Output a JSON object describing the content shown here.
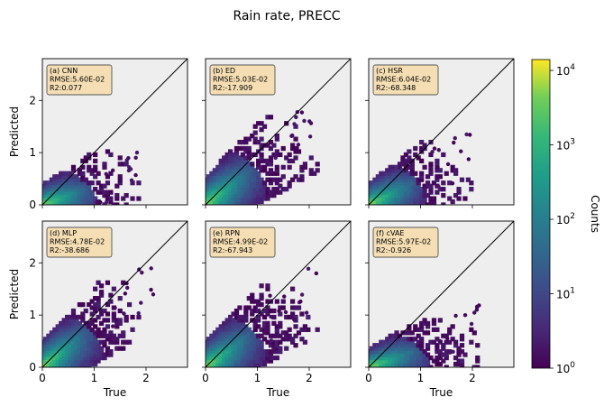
{
  "figure": {
    "title": "Rain rate, PRECC",
    "colorbar": {
      "label": "Counts",
      "scale": "log",
      "range": [
        1,
        14000
      ],
      "ticks": [
        {
          "v": 1,
          "b": "10",
          "e": "0"
        },
        {
          "v": 10,
          "b": "10",
          "e": "1"
        },
        {
          "v": 100,
          "b": "10",
          "e": "2"
        },
        {
          "v": 1000,
          "b": "10",
          "e": "3"
        },
        {
          "v": 10000,
          "b": "10",
          "e": "4"
        }
      ],
      "colormap": "viridis"
    },
    "colors": {
      "panel_bg": "#eeeeee",
      "label_box": "#f5deb3",
      "identity_line": "#000000"
    }
  },
  "chart_data": [
    {
      "type": "hexbin",
      "label": "(a) CNN",
      "rmse": "RMSE:5.60E-02",
      "r2": "R2:0.077",
      "xlabel": "",
      "ylabel": "Predicted",
      "xlim": [
        0,
        2.8
      ],
      "ylim": [
        0,
        2.8
      ],
      "xticks": [
        {
          "v": 0,
          "t": ""
        },
        {
          "v": 1,
          "t": ""
        },
        {
          "v": 2,
          "t": ""
        }
      ],
      "yticks": [
        {
          "v": 0,
          "t": "0"
        },
        {
          "v": 1,
          "t": "1"
        },
        {
          "v": 2,
          "t": "2"
        }
      ],
      "cloud": {
        "xmax": 1.9,
        "ymax": 1.3,
        "slope": 0.38,
        "spread": 0.28
      }
    },
    {
      "type": "hexbin",
      "label": "(b) ED",
      "rmse": "RMSE:5.03E-02",
      "r2": "R2:-17.909",
      "xlabel": "",
      "ylabel": "",
      "xlim": [
        0,
        2.8
      ],
      "ylim": [
        0,
        2.8
      ],
      "xticks": [
        {
          "v": 0,
          "t": ""
        },
        {
          "v": 1,
          "t": ""
        },
        {
          "v": 2,
          "t": ""
        }
      ],
      "yticks": [
        {
          "v": 0,
          "t": ""
        },
        {
          "v": 1,
          "t": ""
        },
        {
          "v": 2,
          "t": ""
        }
      ],
      "cloud": {
        "xmax": 2.2,
        "ymax": 2.05,
        "slope": 0.78,
        "spread": 0.38
      }
    },
    {
      "type": "hexbin",
      "label": "(c) HSR",
      "rmse": "RMSE:6.04E-02",
      "r2": "R2:-68.348",
      "xlabel": "",
      "ylabel": "",
      "xlim": [
        0,
        2.8
      ],
      "ylim": [
        0,
        2.8
      ],
      "xticks": [
        {
          "v": 0,
          "t": ""
        },
        {
          "v": 1,
          "t": ""
        },
        {
          "v": 2,
          "t": ""
        }
      ],
      "yticks": [
        {
          "v": 0,
          "t": ""
        },
        {
          "v": 1,
          "t": ""
        },
        {
          "v": 2,
          "t": ""
        }
      ],
      "cloud": {
        "xmax": 2.0,
        "ymax": 1.55,
        "slope": 0.52,
        "spread": 0.3
      }
    },
    {
      "type": "hexbin",
      "label": "(d) MLP",
      "rmse": "RMSE:4.78E-02",
      "r2": "R2:-38.686",
      "xlabel": "True",
      "ylabel": "Predicted",
      "xlim": [
        0,
        2.8
      ],
      "ylim": [
        0,
        2.8
      ],
      "xticks": [
        {
          "v": 0,
          "t": "0"
        },
        {
          "v": 1,
          "t": "1"
        },
        {
          "v": 2,
          "t": "2"
        }
      ],
      "yticks": [
        {
          "v": 0,
          "t": "0"
        },
        {
          "v": 1,
          "t": "1"
        },
        {
          "v": 2,
          "t": "2"
        }
      ],
      "cloud": {
        "xmax": 2.25,
        "ymax": 1.95,
        "slope": 0.8,
        "spread": 0.36
      }
    },
    {
      "type": "hexbin",
      "label": "(e) RPN",
      "rmse": "RMSE:4.99E-02",
      "r2": "R2:-67.943",
      "xlabel": "True",
      "ylabel": "",
      "xlim": [
        0,
        2.8
      ],
      "ylim": [
        0,
        2.8
      ],
      "xticks": [
        {
          "v": 0,
          "t": "0"
        },
        {
          "v": 1,
          "t": "1"
        },
        {
          "v": 2,
          "t": "2"
        }
      ],
      "yticks": [
        {
          "v": 0,
          "t": ""
        },
        {
          "v": 1,
          "t": ""
        },
        {
          "v": 2,
          "t": ""
        }
      ],
      "cloud": {
        "xmax": 2.2,
        "ymax": 1.95,
        "slope": 0.74,
        "spread": 0.36
      }
    },
    {
      "type": "hexbin",
      "label": "(f) cVAE",
      "rmse": "RMSE:5.97E-02",
      "r2": "R2:-0.926",
      "xlabel": "True",
      "ylabel": "",
      "xlim": [
        0,
        2.8
      ],
      "ylim": [
        0,
        2.8
      ],
      "xticks": [
        {
          "v": 0,
          "t": "0"
        },
        {
          "v": 1,
          "t": "1"
        },
        {
          "v": 2,
          "t": "2"
        }
      ],
      "yticks": [
        {
          "v": 0,
          "t": ""
        },
        {
          "v": 1,
          "t": ""
        },
        {
          "v": 2,
          "t": ""
        }
      ],
      "cloud": {
        "xmax": 2.15,
        "ymax": 1.25,
        "slope": 0.38,
        "spread": 0.25
      }
    }
  ]
}
